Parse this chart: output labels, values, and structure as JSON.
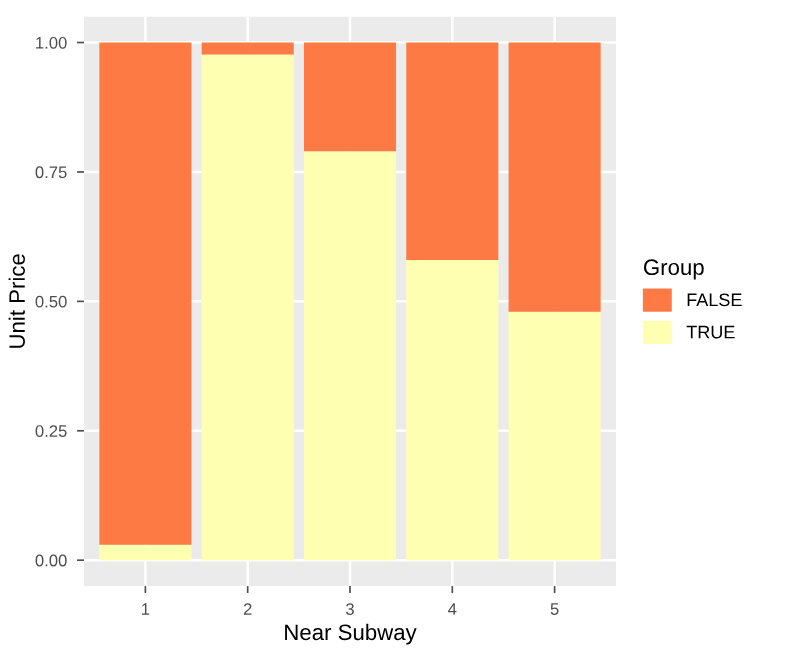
{
  "chart_data": {
    "type": "bar",
    "xlabel": "Near Subway",
    "ylabel": "Unit Price",
    "legend_title": "Group",
    "categories": [
      "1",
      "2",
      "3",
      "4",
      "5"
    ],
    "stacked": true,
    "series": [
      {
        "name": "TRUE",
        "color": "#ffffb2",
        "values": [
          0.03,
          0.977,
          0.79,
          0.58,
          0.48
        ]
      },
      {
        "name": "FALSE",
        "color": "#fd7a45",
        "values": [
          0.97,
          0.023,
          0.21,
          0.42,
          0.52
        ]
      }
    ],
    "ylim": [
      -0.05,
      1.05
    ],
    "yticks": [
      {
        "value": 0,
        "label": "0.00"
      },
      {
        "value": 0.25,
        "label": "0.25"
      },
      {
        "value": 0.5,
        "label": "0.50"
      },
      {
        "value": 0.75,
        "label": "0.75"
      },
      {
        "value": 1,
        "label": "1.00"
      }
    ],
    "grid": true,
    "legend": "right"
  }
}
